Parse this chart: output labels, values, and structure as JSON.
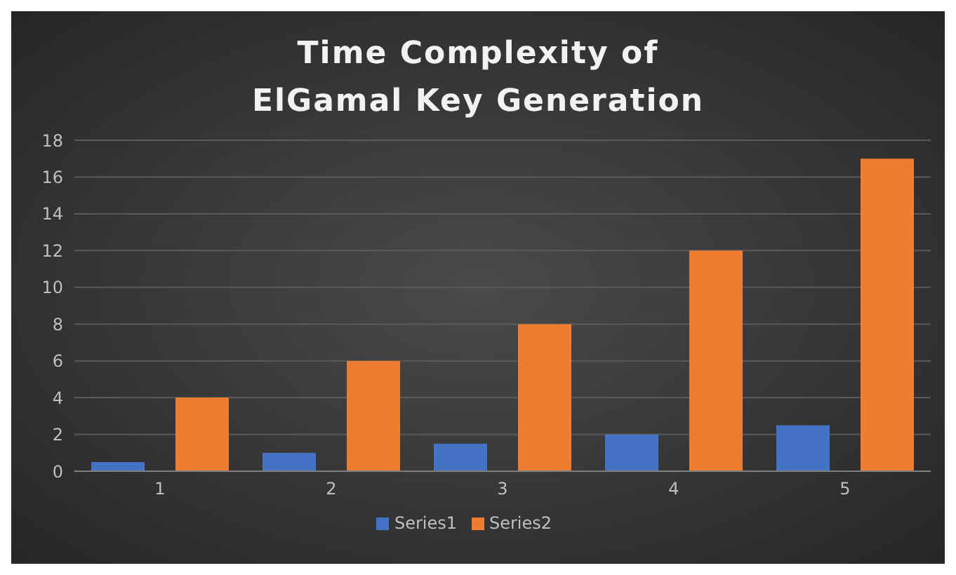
{
  "chart_data": {
    "type": "bar",
    "title": "Time Complexity of ElGamal Key Generation",
    "categories": [
      "1",
      "2",
      "3",
      "4",
      "5"
    ],
    "series": [
      {
        "name": "Series1",
        "color": "#4472c4",
        "values": [
          0.5,
          1,
          1.5,
          2,
          2.5
        ]
      },
      {
        "name": "Series2",
        "color": "#ed7d31",
        "values": [
          4,
          6,
          8,
          12,
          17
        ]
      }
    ],
    "ylim": [
      0,
      18
    ],
    "yticks": [
      0,
      2,
      4,
      6,
      8,
      10,
      12,
      14,
      16,
      18
    ],
    "grid": "y",
    "legend": "bottom"
  }
}
